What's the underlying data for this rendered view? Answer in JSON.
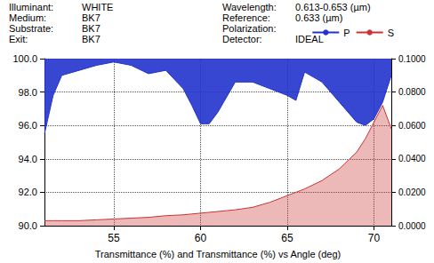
{
  "chart_data": {
    "type": "area",
    "annotations": [
      {
        "label": "Illuminant:",
        "value": "WHITE"
      },
      {
        "label": "Wavelength:",
        "value": "0.613-0.653 (µm)"
      },
      {
        "label": "Medium:",
        "value": "BK7"
      },
      {
        "label": "Reference:",
        "value": "0.633 (µm)"
      },
      {
        "label": "Substrate:",
        "value": "BK7"
      },
      {
        "label": "Polarization:",
        "value": null
      },
      {
        "label": "Exit:",
        "value": "BK7"
      },
      {
        "label": "Detector:",
        "value": "IDEAL"
      }
    ],
    "x_label": "Transmittance (%) and Transmittance (%) vs Angle (deg)",
    "x": [
      51,
      51.5,
      52,
      53,
      54,
      55,
      56,
      57,
      58,
      59,
      59.5,
      60,
      60.5,
      61,
      62,
      63,
      64,
      65,
      65.5,
      66,
      67,
      68,
      69,
      69.5,
      70,
      70.5,
      71
    ],
    "series": [
      {
        "name": "S",
        "color": "#cc3333",
        "axis": "y2",
        "values": [
          0.003,
          0.003,
          0.003,
          0.003,
          0.0035,
          0.004,
          0.0045,
          0.005,
          0.006,
          0.0065,
          0.007,
          0.0075,
          0.008,
          0.0085,
          0.0095,
          0.011,
          0.014,
          0.018,
          0.02,
          0.022,
          0.027,
          0.034,
          0.044,
          0.052,
          0.062,
          0.072,
          0.058
        ]
      },
      {
        "name": "P",
        "color": "#2233cc",
        "values": [
          95.5,
          97.8,
          99.0,
          99.3,
          99.6,
          99.8,
          99.6,
          99.1,
          99.3,
          98.2,
          97.2,
          96.1,
          96.1,
          96.8,
          98.6,
          98.6,
          98.2,
          97.8,
          97.5,
          99.2,
          98.6,
          97.4,
          96.2,
          96.0,
          96.4,
          97.4,
          99.0
        ]
      }
    ],
    "xlim": [
      51,
      71
    ],
    "xticks": [
      55,
      60,
      65,
      70
    ],
    "ylim": [
      90,
      100
    ],
    "yticks": [
      {
        "value": 90,
        "label": "90.0"
      },
      {
        "value": 92,
        "label": "92.0"
      },
      {
        "value": 94,
        "label": "94.0"
      },
      {
        "value": 96,
        "label": "96.0"
      },
      {
        "value": 98,
        "label": "98.0"
      },
      {
        "value": 100,
        "label": "100.0"
      }
    ],
    "y2lim": [
      0,
      0.1
    ],
    "y2ticks": [
      {
        "value": 0,
        "label": "0.0000"
      },
      {
        "value": 0.02,
        "label": "0.0200"
      },
      {
        "value": 0.04,
        "label": "0.0400"
      },
      {
        "value": 0.06,
        "label": "0.0600"
      },
      {
        "value": 0.08,
        "label": "0.0800"
      },
      {
        "value": 0.1,
        "label": "0.1000"
      }
    ],
    "grid": true,
    "legend": "top-right"
  }
}
